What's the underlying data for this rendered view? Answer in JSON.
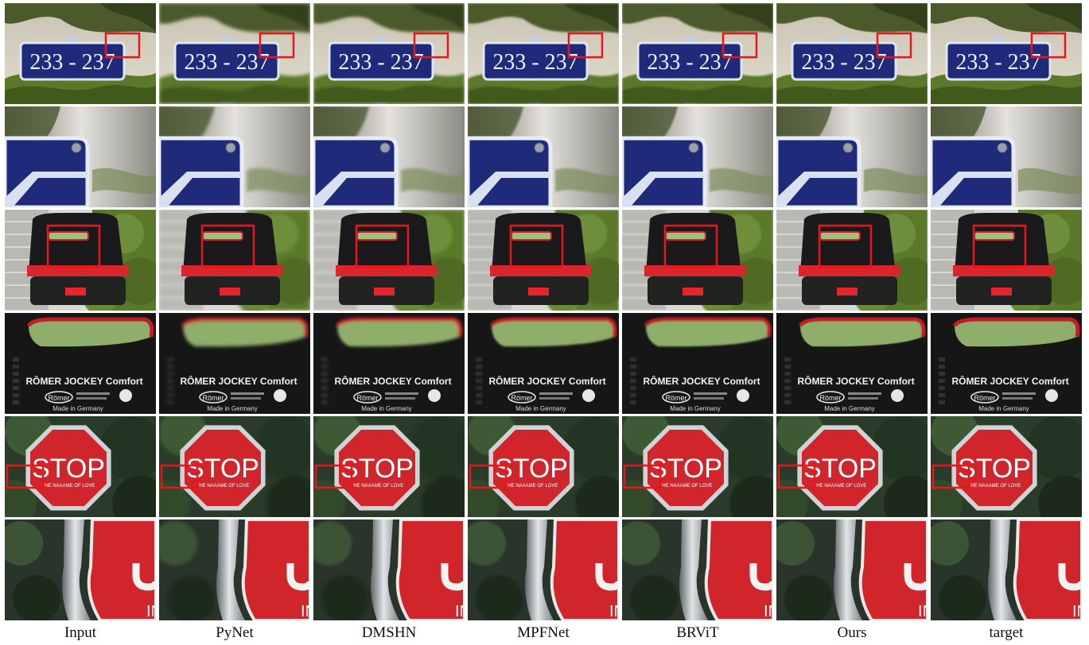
{
  "columns": [
    "Input",
    "PyNet",
    "DMSHN",
    "MPFNet",
    "BRViT",
    "Ours",
    "target"
  ],
  "rows": [
    {
      "scene": "sign",
      "sign_text": "233 - 237"
    },
    {
      "scene": "sign-crop"
    },
    {
      "scene": "seat"
    },
    {
      "scene": "seat-crop",
      "brand_text": "RÔMER JOCKEY Comfort",
      "logo_text": "Römer",
      "origin_text": "Made in Germany"
    },
    {
      "scene": "stop",
      "stop_text": "STOP",
      "stop_sub": "THE NAAAME OF LOVE"
    },
    {
      "scene": "stop-crop",
      "crop_text": "IN"
    }
  ],
  "colors": {
    "highlight_box": "#e8161b",
    "sign_blue": "#1f2a7a",
    "stop_red": "#d0262b",
    "foliage": "#5a7a2a"
  }
}
